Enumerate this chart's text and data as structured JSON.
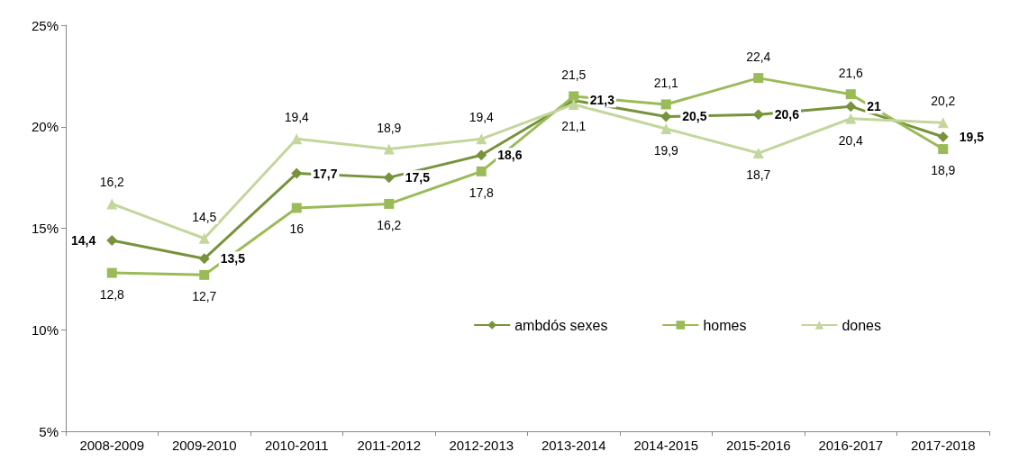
{
  "chart_data": {
    "type": "line",
    "categories": [
      "2008-2009",
      "2009-2010",
      "2010-2011",
      "2011-2012",
      "2012-2013",
      "2013-2014",
      "2014-2015",
      "2015-2016",
      "2016-2017",
      "2017-2018"
    ],
    "series": [
      {
        "name": "ambdós sexes",
        "color": "#77933c",
        "marker": "diamond",
        "values": [
          14.4,
          13.5,
          17.7,
          17.5,
          18.6,
          21.3,
          20.5,
          20.6,
          21,
          19.5
        ],
        "value_labels": [
          "14,4",
          "13,5",
          "17,7",
          "17,5",
          "18,6",
          "21,3",
          "20,5",
          "20,6",
          "21",
          "19,5"
        ]
      },
      {
        "name": "homes",
        "color": "#9bbb59",
        "marker": "square",
        "values": [
          12.8,
          12.7,
          16,
          16.2,
          17.8,
          21.5,
          21.1,
          22.4,
          21.6,
          18.9
        ],
        "value_labels": [
          "12,8",
          "12,7",
          "16",
          "16,2",
          "17,8",
          "21,5",
          "21,1",
          "22,4",
          "21,6",
          "18,9"
        ]
      },
      {
        "name": "dones",
        "color": "#c3d69b",
        "marker": "triangle",
        "values": [
          16.2,
          14.5,
          19.4,
          18.9,
          19.4,
          21.1,
          19.9,
          18.7,
          20.4,
          20.2
        ],
        "value_labels": [
          "16,2",
          "14,5",
          "19,4",
          "18,9",
          "19,4",
          "21,1",
          "19,9",
          "18,7",
          "20,4",
          "20,2"
        ]
      }
    ],
    "ylim": [
      5,
      25
    ],
    "yticks": [
      {
        "value": 5,
        "label": "5%"
      },
      {
        "value": 10,
        "label": "10%"
      },
      {
        "value": 15,
        "label": "15%"
      },
      {
        "value": 20,
        "label": "20%"
      },
      {
        "value": 25,
        "label": "25%"
      }
    ],
    "grid": false,
    "legend": "right",
    "line_style": "solid"
  }
}
